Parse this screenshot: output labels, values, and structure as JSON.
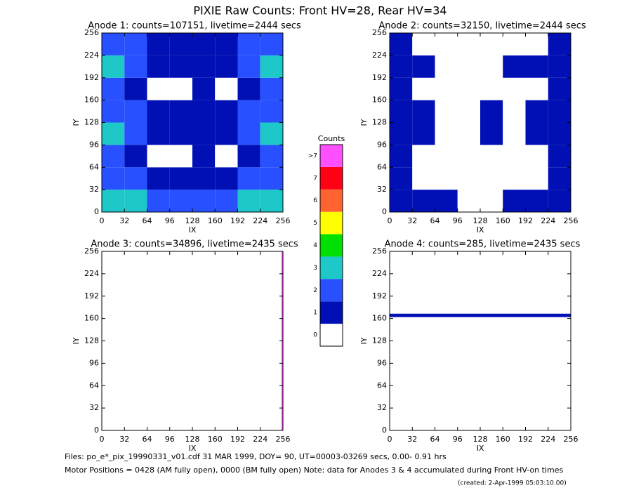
{
  "title": "PIXIE Raw Counts:  Front HV=28, Rear HV=34",
  "chart_data": [
    {
      "type": "heatmap",
      "title": "Anode 1: counts=107151, livetime=2444 secs",
      "xlabel": "IX",
      "ylabel": "IY",
      "xlim": [
        0,
        256
      ],
      "ylim": [
        0,
        256
      ],
      "xticks": [
        0,
        32,
        64,
        96,
        128,
        160,
        192,
        224,
        256
      ],
      "yticks": [
        0,
        32,
        64,
        96,
        128,
        160,
        192,
        224,
        256
      ],
      "xbins": [
        0,
        32,
        64,
        96,
        128,
        160,
        192,
        224,
        256
      ],
      "ybins": [
        0,
        32,
        64,
        96,
        128,
        160,
        192,
        224,
        256
      ],
      "values": [
        [
          3,
          3,
          2,
          2,
          2,
          2,
          3,
          3
        ],
        [
          2,
          2,
          1,
          1,
          1,
          1,
          2,
          2
        ],
        [
          2,
          1,
          0.5,
          0.5,
          1,
          0.5,
          1,
          2
        ],
        [
          3,
          2,
          1,
          1,
          1,
          1,
          2,
          3
        ],
        [
          2,
          2,
          1.5,
          1,
          1.5,
          1.5,
          2,
          2
        ],
        [
          2,
          1,
          0.5,
          0.5,
          1,
          0.5,
          1,
          2
        ],
        [
          3,
          2,
          1,
          1,
          1,
          1,
          2,
          3
        ],
        [
          2,
          2,
          1,
          1,
          1,
          1,
          2,
          2
        ]
      ]
    },
    {
      "type": "heatmap",
      "title": "Anode 2: counts=32150, livetime=2444 secs",
      "xlabel": "IX",
      "ylabel": "IY",
      "xlim": [
        0,
        256
      ],
      "ylim": [
        0,
        256
      ],
      "xticks": [
        0,
        32,
        64,
        96,
        128,
        160,
        192,
        224,
        256
      ],
      "yticks": [
        0,
        32,
        64,
        96,
        128,
        160,
        192,
        224,
        256
      ],
      "xbins": [
        0,
        32,
        64,
        96,
        128,
        160,
        192,
        224,
        256
      ],
      "ybins": [
        0,
        32,
        64,
        96,
        128,
        160,
        192,
        224,
        256
      ],
      "values": [
        [
          1,
          1,
          1,
          0.5,
          0.5,
          1,
          1,
          1
        ],
        [
          1,
          0.5,
          0.5,
          0.5,
          0.5,
          0.5,
          0.5,
          1
        ],
        [
          1,
          0.5,
          0.5,
          0.5,
          0.5,
          0.5,
          0.5,
          1
        ],
        [
          1,
          1,
          0.5,
          0.5,
          1,
          0.5,
          1,
          1
        ],
        [
          1,
          1,
          0.5,
          0.5,
          1,
          0.5,
          1,
          1
        ],
        [
          1,
          0.5,
          0.5,
          0.5,
          0.5,
          0.5,
          0.5,
          1
        ],
        [
          1,
          1,
          0.5,
          0.5,
          0.5,
          1,
          1,
          1
        ],
        [
          1,
          0.5,
          0.5,
          0.5,
          0.5,
          0.5,
          0.5,
          1
        ]
      ]
    },
    {
      "type": "heatmap",
      "title": "Anode 3: counts=34896, livetime=2435 secs",
      "xlabel": "IX",
      "ylabel": "IY",
      "xlim": [
        0,
        256
      ],
      "ylim": [
        0,
        256
      ],
      "xticks": [
        0,
        32,
        64,
        96,
        128,
        160,
        192,
        224,
        256
      ],
      "yticks": [
        0,
        32,
        64,
        96,
        128,
        160,
        192,
        224,
        256
      ],
      "xbins": [
        0,
        254,
        256
      ],
      "ybins": [
        0,
        256
      ],
      "values": [
        [
          0,
          8
        ]
      ]
    },
    {
      "type": "heatmap",
      "title": "Anode 4: counts=285, livetime=2435 secs",
      "xlabel": "IX",
      "ylabel": "IY",
      "xlim": [
        0,
        256
      ],
      "ylim": [
        0,
        256
      ],
      "xticks": [
        0,
        32,
        64,
        96,
        128,
        160,
        192,
        224,
        256
      ],
      "yticks": [
        0,
        32,
        64,
        96,
        128,
        160,
        192,
        224,
        256
      ],
      "xbins": [
        0,
        256
      ],
      "ybins": [
        0,
        162,
        167,
        256
      ],
      "values": [
        [
          0
        ],
        [
          1
        ],
        [
          0
        ]
      ]
    }
  ],
  "colorbar": {
    "title": "Counts",
    "ticks": [
      0,
      1,
      2,
      3,
      4,
      5,
      6,
      7,
      {
        "value": 8,
        "label": ">7"
      }
    ],
    "colors": [
      "#ffffff",
      "#0010b4",
      "#2850ff",
      "#1ec8c8",
      "#00e000",
      "#ffff00",
      "#ff6430",
      "#ff0014",
      "#ff50ff"
    ]
  },
  "footer": [
    "Files: po_e*_pix_19990331_v01.cdf    31 MAR 1999, DOY= 90, UT=00003-03269 secs,  0.00- 0.91 hrs",
    "Motor Positions = 0428 (AM fully open), 0000 (BM fully open)    Note: data for Anodes 3 & 4 accumulated during Front HV-on times",
    "(created:  2-Apr-1999 05:03:10.00)"
  ]
}
